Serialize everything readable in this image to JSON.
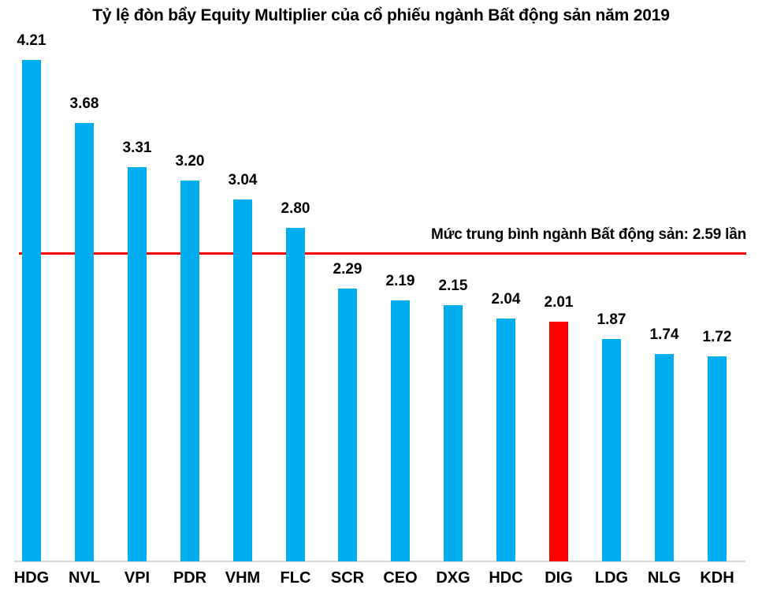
{
  "chart_data": {
    "type": "bar",
    "title": "Tỷ lệ đòn bẩy Equity Multiplier của cổ phiếu ngành Bất động sản năm 2019",
    "categories": [
      "HDG",
      "NVL",
      "VPI",
      "PDR",
      "VHM",
      "FLC",
      "SCR",
      "CEO",
      "DXG",
      "HDC",
      "DIG",
      "LDG",
      "NLG",
      "KDH"
    ],
    "values": [
      4.21,
      3.68,
      3.31,
      3.2,
      3.04,
      2.8,
      2.29,
      2.19,
      2.15,
      2.04,
      2.01,
      1.87,
      1.74,
      1.72
    ],
    "value_label_format": "0.00",
    "highlighted_category": "DIG",
    "average_line": {
      "value": 2.59,
      "label": "Mức trung bình ngành Bất động sản: 2.59 lần"
    },
    "xlabel": "",
    "ylabel": "",
    "ylim": [
      0,
      4.71
    ],
    "grid": false,
    "legend": false,
    "colors": {
      "bar": "#00AEEF",
      "highlight": "#FF0000",
      "avg_line": "#FF0000",
      "axis_line": "#D9D9D9",
      "text": "#000000",
      "background": "#FFFFFF"
    }
  }
}
